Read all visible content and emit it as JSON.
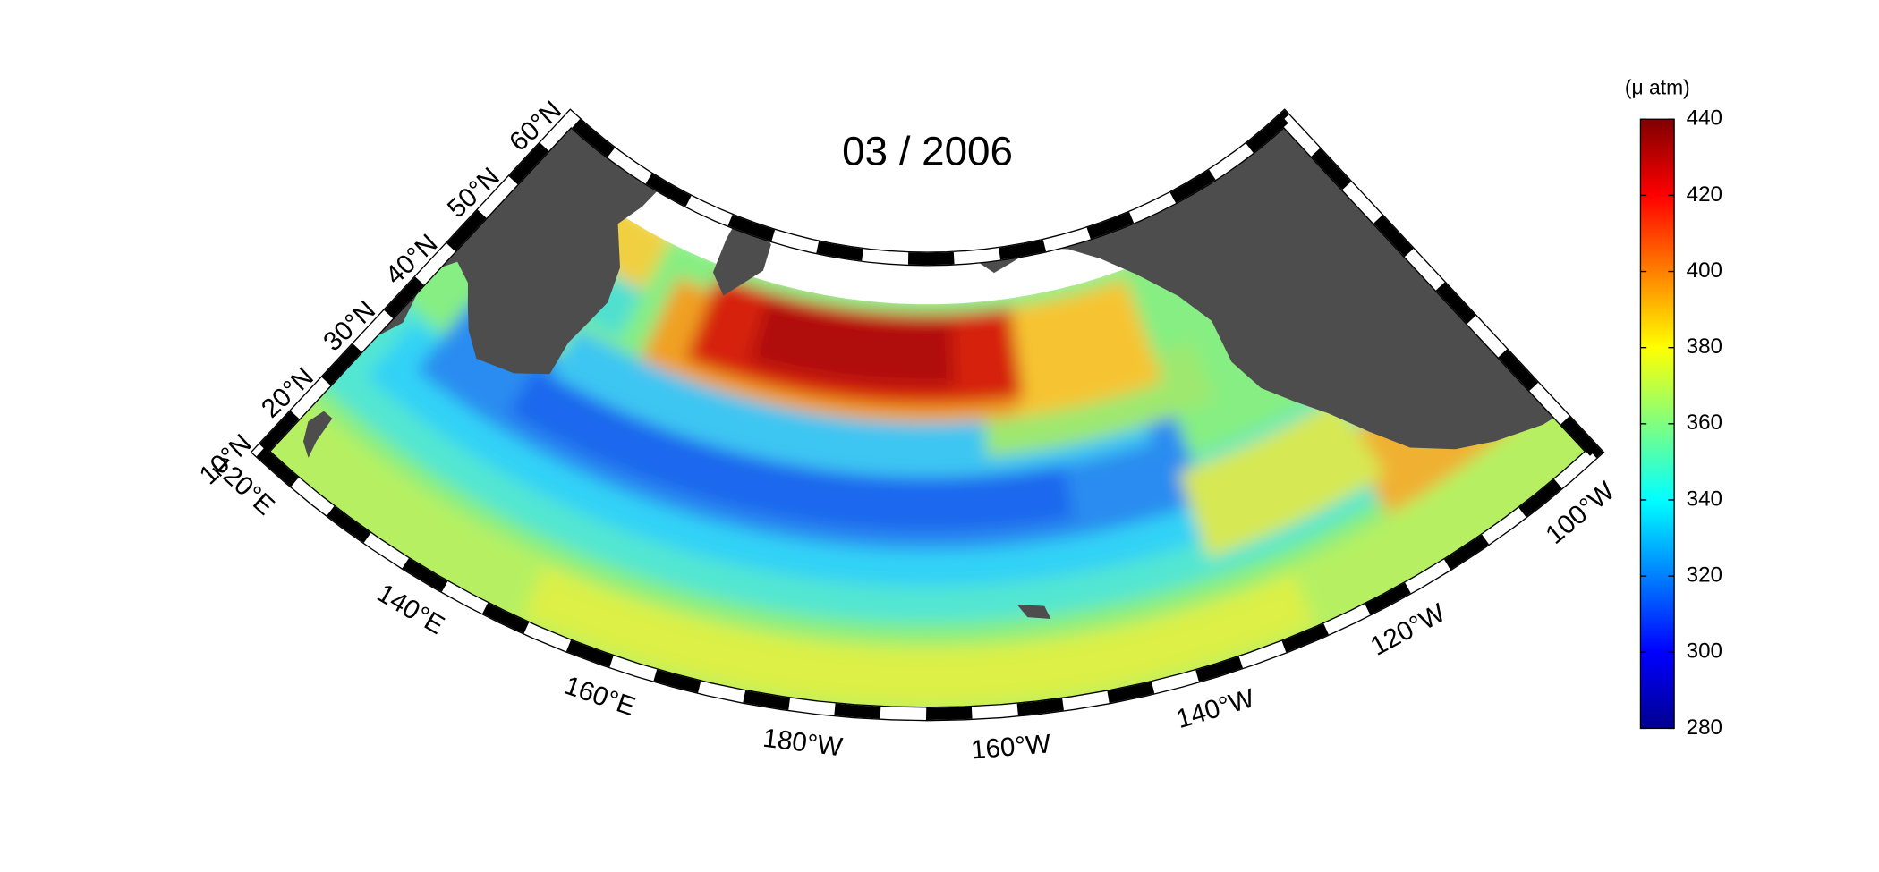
{
  "title": "03 / 2006",
  "colorbar": {
    "label": "(μ atm)",
    "colormap": "jet",
    "lim": [
      280,
      440
    ],
    "ticks": [
      280,
      300,
      320,
      340,
      360,
      380,
      400,
      420,
      440
    ]
  },
  "map": {
    "lat_ticks": [
      {
        "value": 10,
        "label": "10°N"
      },
      {
        "value": 20,
        "label": "20°N"
      },
      {
        "value": 30,
        "label": "30°N"
      },
      {
        "value": 40,
        "label": "40°N"
      },
      {
        "value": 50,
        "label": "50°N"
      },
      {
        "value": 60,
        "label": "60°N"
      }
    ],
    "lon_ticks": [
      {
        "value": 120,
        "label": "120°E"
      },
      {
        "value": 140,
        "label": "140°E"
      },
      {
        "value": 160,
        "label": "160°E"
      },
      {
        "value": 180,
        "label": "180°W"
      },
      {
        "value": 200,
        "label": "160°W"
      },
      {
        "value": 220,
        "label": "140°W"
      },
      {
        "value": 240,
        "label": "120°W"
      },
      {
        "value": 260,
        "label": "100°W"
      }
    ]
  }
}
